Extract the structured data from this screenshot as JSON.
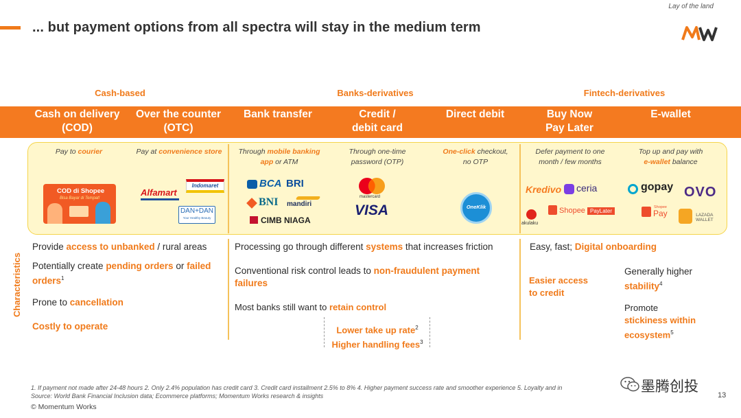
{
  "header": {
    "title": "... but payment options from all spectra will stay in the medium term",
    "section": "Lay of the land"
  },
  "categories": [
    "Cash-based",
    "Banks-derivatives",
    "Fintech-derivatives"
  ],
  "methods": [
    {
      "l1": "Cash on delivery",
      "l2": "(COD)"
    },
    {
      "l1": "Over the counter",
      "l2": "(OTC)"
    },
    {
      "l1": "Bank transfer",
      "l2": ""
    },
    {
      "l1": "Credit /",
      "l2": "debit card"
    },
    {
      "l1": "Direct debit",
      "l2": ""
    },
    {
      "l1": "Buy Now",
      "l2": "Pay Later"
    },
    {
      "l1": "E-wallet",
      "l2": ""
    }
  ],
  "descriptions": {
    "cod": {
      "a": "Pay to ",
      "b": "courier"
    },
    "otc": {
      "a": "Pay at ",
      "b": "convenience store"
    },
    "bank": {
      "a": "Through ",
      "b": "mobile banking app",
      "c": " or ATM"
    },
    "card": {
      "a": "Through one-time",
      "b": "password (OTP)"
    },
    "debit": {
      "a": "One-click",
      "b": " checkout,",
      "c": "no OTP"
    },
    "bnpl": {
      "a": "Defer payment to one",
      "b": "month / few months"
    },
    "wallet": {
      "a": "Top up and pay with",
      "b": "e-wallet",
      "c": " balance"
    }
  },
  "logos": {
    "cod_l1": "COD di Shopee",
    "cod_l2": "Bisa Bayar di Tempat!",
    "alfamart": "Alfamart",
    "indomaret": "Indomaret",
    "dandan_l1": "DAN+DAN",
    "dandan_l2": "Your Healthy Beauty",
    "bca": "BCA",
    "bri": "BRI",
    "bni": "BNI",
    "mandiri": "mandiri",
    "cimb": "CIMB NIAGA",
    "mastercard": "mastercard",
    "visa": "VISA",
    "oneklik": "OneKlik",
    "kredivo": "Kredivo",
    "ceria": "ceria",
    "akulaku": "akulaku",
    "shopee_paylater_a": "Shopee",
    "shopee_paylater_b": "PayLater",
    "gopay": "gopay",
    "ovo": "OVO",
    "shopeepay_a": "Shopee",
    "shopeepay_b": "Pay",
    "lazada_a": "LAZADA",
    "lazada_b": "WALLET"
  },
  "characteristics": {
    "label": "Characteristics",
    "cash": {
      "c1a": "Provide ",
      "c1b": "access to unbanked",
      "c1c": " / rural areas",
      "c2a": "Potentially create ",
      "c2b": "pending orders",
      "c2c": " or ",
      "c2d": "failed",
      "c2e": "orders",
      "c2f": "1",
      "c3a": "Prone to ",
      "c3b": "cancellation",
      "c4": "Costly to operate"
    },
    "bank": {
      "b1a": "Processing go through different ",
      "b1b": "systems",
      "b1c": " that increases friction",
      "b2a": "Conventional risk control leads to ",
      "b2b": "non-fraudulent payment",
      "b2c": "failures",
      "b3a": "Most banks still want to ",
      "b3b": "retain control",
      "b4a": "Lower take up rate",
      "b4b": "2",
      "b5a": "Higher handling fees",
      "b5b": "3"
    },
    "fintech": {
      "f1a": "Easy, fast; ",
      "f1b": "Digital onboarding",
      "f2a": "Easier access",
      "f2b": "to credit",
      "f3a": "Generally higher",
      "f3b": "stability",
      "f3c": "4",
      "f4a": "Promote",
      "f4b": "stickiness within",
      "f4c": "ecosystem",
      "f4d": "5"
    }
  },
  "footer": {
    "notes": "1. If payment not made after 24-48 hours   2. Only 2.4% population has credit card   3. Credit card installment 2.5% to 8%   4. Higher payment success rate and smoother experience   5. Loyalty and in",
    "source": "Source: World Bank Financial Inclusion data; Ecommerce platforms; Momentum Works research & insights",
    "copyright": "© Momentum Works",
    "page": "13",
    "watermark": "墨腾创投"
  },
  "colors": {
    "accent": "#f47a20",
    "panel": "#fff7cc",
    "panel_border": "#f5d44a"
  }
}
